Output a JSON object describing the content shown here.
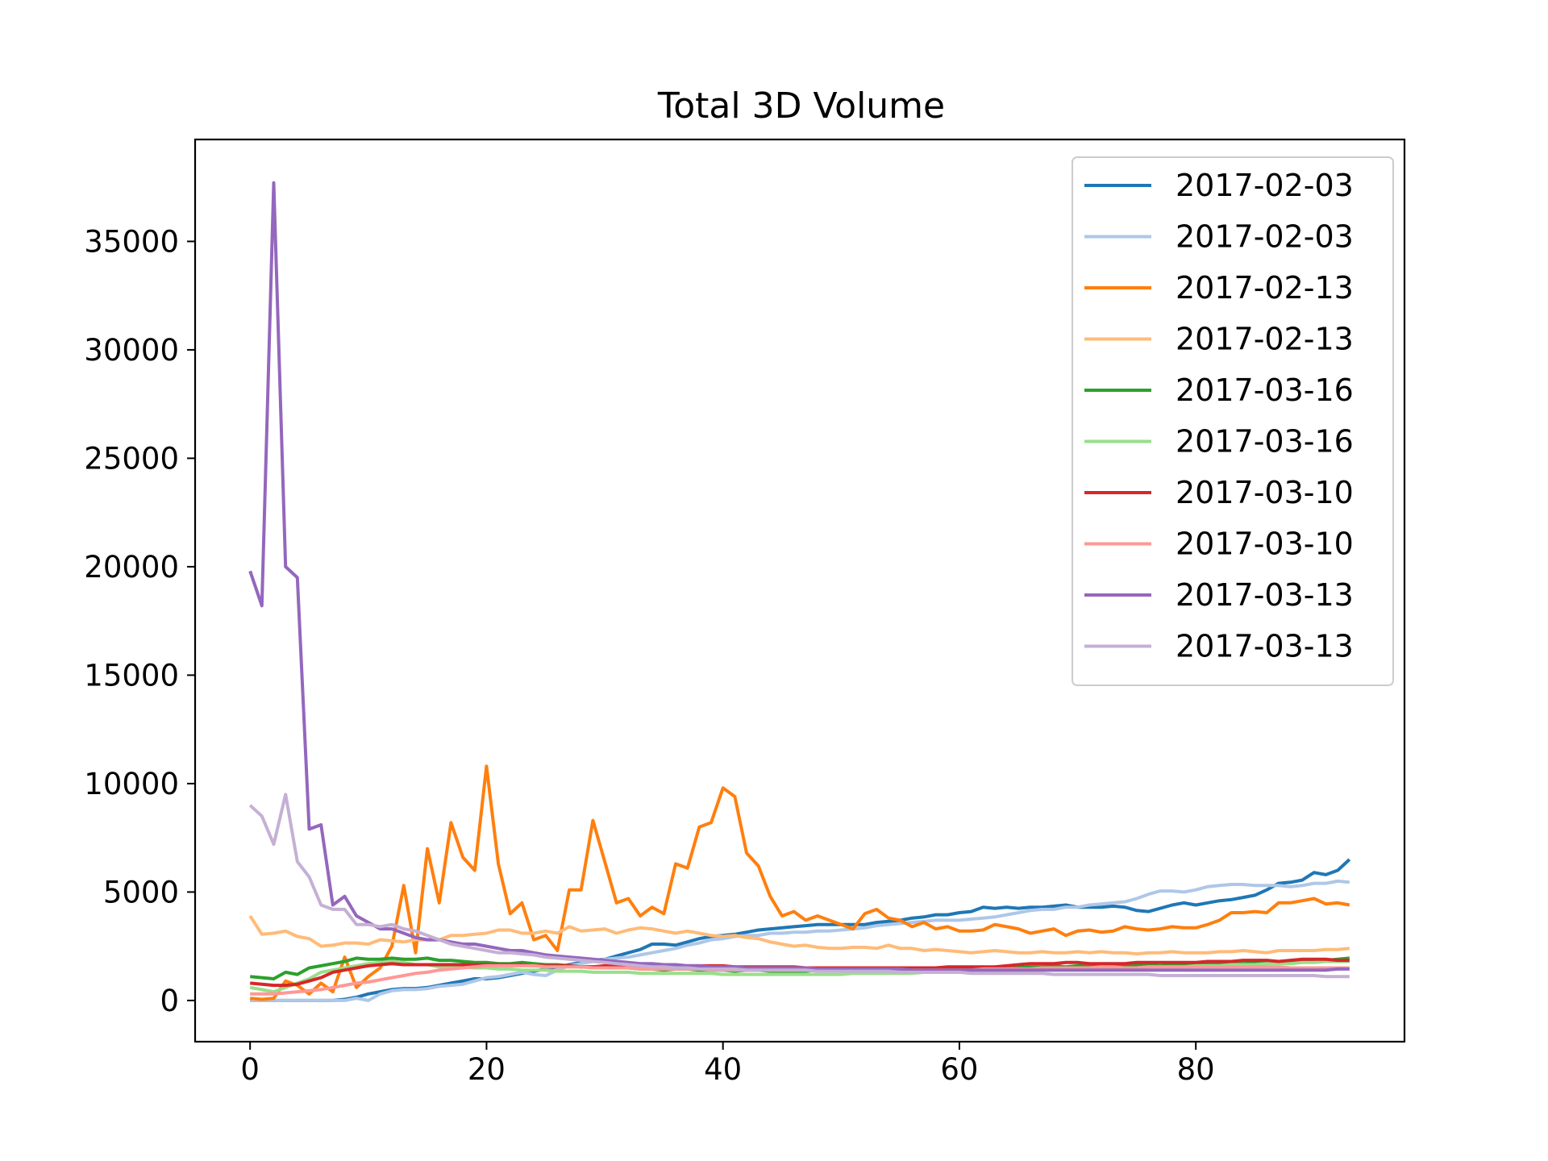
{
  "chart_data": {
    "type": "line",
    "title": "Total 3D Volume",
    "xlabel": "",
    "ylabel": "",
    "xlim": [
      -4.65,
      97.65
    ],
    "ylim": [
      -1900,
      39700
    ],
    "xticks": [
      0,
      20,
      40,
      60,
      80
    ],
    "yticks": [
      0,
      5000,
      10000,
      15000,
      20000,
      25000,
      30000,
      35000
    ],
    "grid": false,
    "legend_position": "top-right",
    "x": [
      0,
      1,
      2,
      3,
      4,
      5,
      6,
      7,
      8,
      9,
      10,
      11,
      12,
      13,
      14,
      15,
      16,
      17,
      18,
      19,
      20,
      21,
      22,
      23,
      24,
      25,
      26,
      27,
      28,
      29,
      30,
      31,
      32,
      33,
      34,
      35,
      36,
      37,
      38,
      39,
      40,
      41,
      42,
      43,
      44,
      45,
      46,
      47,
      48,
      49,
      50,
      51,
      52,
      53,
      54,
      55,
      56,
      57,
      58,
      59,
      60,
      61,
      62,
      63,
      64,
      65,
      66,
      67,
      68,
      69,
      70,
      71,
      72,
      73,
      74,
      75,
      76,
      77,
      78,
      79,
      80,
      81,
      82,
      83,
      84,
      85,
      86,
      87,
      88,
      89,
      90,
      91,
      92,
      93
    ],
    "series": [
      {
        "name": "2017-02-03",
        "color": "#1f77b4",
        "values": [
          0,
          0,
          0,
          0,
          0,
          0,
          0,
          0,
          50,
          150,
          300,
          400,
          500,
          550,
          550,
          600,
          700,
          800,
          900,
          1000,
          1000,
          1050,
          1150,
          1250,
          1350,
          1450,
          1550,
          1650,
          1750,
          1850,
          1900,
          2050,
          2200,
          2350,
          2600,
          2600,
          2550,
          2700,
          2850,
          2950,
          3000,
          3050,
          3150,
          3250,
          3300,
          3350,
          3400,
          3450,
          3500,
          3500,
          3500,
          3500,
          3500,
          3600,
          3650,
          3700,
          3800,
          3850,
          3950,
          3950,
          4050,
          4100,
          4300,
          4250,
          4300,
          4250,
          4300,
          4300,
          4350,
          4400,
          4300,
          4300,
          4300,
          4350,
          4300,
          4150,
          4100,
          4250,
          4400,
          4500,
          4400,
          4500,
          4600,
          4650,
          4750,
          4850,
          5100,
          5400,
          5450,
          5550,
          5900,
          5800,
          6000,
          6500
        ]
      },
      {
        "name": "2017-02-03",
        "color": "#aec7e8",
        "values": [
          0,
          0,
          0,
          0,
          0,
          0,
          0,
          0,
          0,
          100,
          0,
          300,
          450,
          500,
          500,
          550,
          650,
          700,
          750,
          900,
          1050,
          1100,
          1200,
          1300,
          1200,
          1150,
          1400,
          1600,
          1700,
          1800,
          1900,
          1950,
          2000,
          2100,
          2200,
          2300,
          2400,
          2550,
          2650,
          2800,
          2850,
          2950,
          3000,
          3000,
          3100,
          3100,
          3150,
          3150,
          3200,
          3200,
          3250,
          3300,
          3350,
          3450,
          3500,
          3550,
          3600,
          3650,
          3700,
          3700,
          3700,
          3750,
          3800,
          3850,
          3950,
          4050,
          4150,
          4200,
          4200,
          4300,
          4300,
          4400,
          4450,
          4500,
          4550,
          4700,
          4900,
          5050,
          5050,
          5000,
          5100,
          5250,
          5300,
          5350,
          5350,
          5300,
          5300,
          5300,
          5250,
          5300,
          5400,
          5400,
          5500,
          5450
        ]
      },
      {
        "name": "2017-02-13",
        "color": "#ff7f0e",
        "values": [
          100,
          50,
          100,
          900,
          700,
          300,
          800,
          400,
          2000,
          600,
          1100,
          1500,
          2500,
          5300,
          2200,
          7000,
          4500,
          8200,
          6600,
          6000,
          10800,
          6300,
          4000,
          4500,
          2800,
          3000,
          2300,
          5100,
          5100,
          8300,
          6400,
          4500,
          4700,
          3900,
          4300,
          4000,
          6300,
          6100,
          8000,
          8200,
          9800,
          9400,
          6800,
          6200,
          4800,
          3900,
          4100,
          3700,
          3900,
          3700,
          3500,
          3300,
          4000,
          4200,
          3800,
          3700,
          3400,
          3600,
          3300,
          3400,
          3200,
          3200,
          3250,
          3500,
          3400,
          3300,
          3100,
          3200,
          3300,
          3000,
          3200,
          3250,
          3150,
          3200,
          3400,
          3300,
          3250,
          3300,
          3400,
          3350,
          3350,
          3500,
          3700,
          4050,
          4050,
          4100,
          4050,
          4500,
          4500,
          4600,
          4700,
          4450,
          4500,
          4400
        ]
      },
      {
        "name": "2017-02-13",
        "color": "#ffbb78",
        "values": [
          3900,
          3050,
          3100,
          3200,
          2950,
          2850,
          2500,
          2550,
          2650,
          2650,
          2600,
          2800,
          2750,
          2700,
          2800,
          2800,
          2800,
          3000,
          3000,
          3050,
          3100,
          3250,
          3250,
          3100,
          3100,
          3200,
          3100,
          3400,
          3200,
          3250,
          3300,
          3100,
          3250,
          3350,
          3300,
          3200,
          3100,
          3200,
          3100,
          3000,
          2950,
          3000,
          2900,
          2850,
          2700,
          2600,
          2500,
          2550,
          2450,
          2400,
          2400,
          2450,
          2450,
          2400,
          2550,
          2400,
          2400,
          2300,
          2350,
          2300,
          2250,
          2200,
          2250,
          2300,
          2250,
          2200,
          2200,
          2250,
          2200,
          2200,
          2250,
          2200,
          2250,
          2200,
          2200,
          2150,
          2200,
          2200,
          2250,
          2200,
          2200,
          2200,
          2250,
          2250,
          2300,
          2250,
          2200,
          2300,
          2300,
          2300,
          2300,
          2350,
          2350,
          2400
        ]
      },
      {
        "name": "2017-03-16",
        "color": "#2ca02c",
        "values": [
          1100,
          1050,
          1000,
          1300,
          1200,
          1500,
          1600,
          1700,
          1800,
          1950,
          1900,
          1900,
          1950,
          1900,
          1900,
          1950,
          1850,
          1850,
          1800,
          1750,
          1750,
          1700,
          1700,
          1750,
          1700,
          1650,
          1650,
          1600,
          1550,
          1550,
          1500,
          1500,
          1500,
          1450,
          1450,
          1400,
          1450,
          1450,
          1400,
          1400,
          1400,
          1350,
          1400,
          1400,
          1350,
          1350,
          1350,
          1350,
          1400,
          1400,
          1350,
          1400,
          1400,
          1400,
          1400,
          1450,
          1400,
          1450,
          1450,
          1400,
          1450,
          1450,
          1450,
          1500,
          1450,
          1500,
          1550,
          1550,
          1600,
          1550,
          1600,
          1600,
          1600,
          1650,
          1600,
          1650,
          1650,
          1600,
          1650,
          1650,
          1650,
          1700,
          1700,
          1750,
          1700,
          1750,
          1750,
          1800,
          1800,
          1800,
          1850,
          1850,
          1900,
          1950
        ]
      },
      {
        "name": "2017-03-16",
        "color": "#98df8a",
        "values": [
          600,
          500,
          400,
          600,
          800,
          1000,
          1300,
          1400,
          1500,
          1600,
          1700,
          1750,
          1800,
          1750,
          1650,
          1650,
          1550,
          1500,
          1550,
          1500,
          1500,
          1450,
          1450,
          1400,
          1400,
          1400,
          1350,
          1350,
          1350,
          1300,
          1300,
          1300,
          1300,
          1250,
          1250,
          1250,
          1250,
          1250,
          1250,
          1250,
          1200,
          1200,
          1200,
          1200,
          1200,
          1200,
          1200,
          1200,
          1200,
          1200,
          1200,
          1250,
          1250,
          1250,
          1250,
          1250,
          1250,
          1300,
          1300,
          1300,
          1300,
          1300,
          1350,
          1350,
          1350,
          1350,
          1400,
          1400,
          1450,
          1450,
          1450,
          1450,
          1500,
          1500,
          1500,
          1500,
          1550,
          1550,
          1550,
          1550,
          1600,
          1600,
          1600,
          1650,
          1650,
          1650,
          1700,
          1700,
          1700,
          1750,
          1750,
          1800,
          1800,
          1800
        ]
      },
      {
        "name": "2017-03-10",
        "color": "#d62728",
        "values": [
          800,
          750,
          700,
          700,
          750,
          900,
          1050,
          1300,
          1400,
          1500,
          1600,
          1650,
          1700,
          1650,
          1650,
          1650,
          1650,
          1650,
          1650,
          1650,
          1650,
          1650,
          1650,
          1650,
          1600,
          1600,
          1600,
          1600,
          1550,
          1550,
          1600,
          1600,
          1600,
          1600,
          1550,
          1600,
          1550,
          1600,
          1600,
          1600,
          1600,
          1550,
          1550,
          1550,
          1550,
          1550,
          1550,
          1500,
          1500,
          1500,
          1500,
          1500,
          1500,
          1500,
          1500,
          1500,
          1500,
          1500,
          1500,
          1550,
          1550,
          1550,
          1550,
          1550,
          1600,
          1650,
          1700,
          1700,
          1700,
          1750,
          1750,
          1700,
          1700,
          1700,
          1700,
          1750,
          1750,
          1750,
          1750,
          1750,
          1750,
          1800,
          1800,
          1800,
          1850,
          1850,
          1850,
          1800,
          1850,
          1900,
          1900,
          1900,
          1850,
          1850
        ]
      },
      {
        "name": "2017-03-10",
        "color": "#ff9896",
        "values": [
          300,
          300,
          300,
          350,
          400,
          450,
          500,
          600,
          700,
          800,
          850,
          950,
          1050,
          1150,
          1250,
          1300,
          1400,
          1450,
          1500,
          1550,
          1600,
          1600,
          1600,
          1600,
          1600,
          1550,
          1550,
          1550,
          1550,
          1500,
          1500,
          1500,
          1500,
          1450,
          1450,
          1450,
          1450,
          1450,
          1450,
          1400,
          1400,
          1400,
          1400,
          1400,
          1400,
          1400,
          1400,
          1400,
          1400,
          1400,
          1400,
          1400,
          1400,
          1400,
          1400,
          1400,
          1400,
          1400,
          1400,
          1400,
          1400,
          1400,
          1450,
          1450,
          1450,
          1450,
          1450,
          1500,
          1500,
          1500,
          1500,
          1500,
          1550,
          1550,
          1500,
          1500,
          1550,
          1550,
          1550,
          1550,
          1550,
          1550,
          1550,
          1550,
          1550,
          1550,
          1550,
          1550,
          1500,
          1500,
          1500,
          1500,
          1500,
          1500
        ]
      },
      {
        "name": "2017-03-13",
        "color": "#9467bd",
        "values": [
          19800,
          18200,
          37700,
          20000,
          19500,
          7900,
          8100,
          4400,
          4800,
          3900,
          3600,
          3300,
          3300,
          3100,
          2900,
          2800,
          2800,
          2700,
          2600,
          2600,
          2500,
          2400,
          2300,
          2300,
          2200,
          2100,
          2050,
          2000,
          1950,
          1900,
          1850,
          1800,
          1750,
          1700,
          1700,
          1650,
          1650,
          1600,
          1600,
          1550,
          1550,
          1550,
          1500,
          1500,
          1500,
          1500,
          1500,
          1500,
          1450,
          1450,
          1450,
          1450,
          1450,
          1450,
          1450,
          1450,
          1400,
          1400,
          1400,
          1400,
          1400,
          1400,
          1400,
          1400,
          1400,
          1400,
          1400,
          1400,
          1400,
          1400,
          1400,
          1400,
          1400,
          1400,
          1400,
          1400,
          1400,
          1400,
          1400,
          1400,
          1400,
          1400,
          1400,
          1400,
          1400,
          1400,
          1400,
          1400,
          1400,
          1400,
          1400,
          1400,
          1450,
          1450
        ]
      },
      {
        "name": "2017-03-13",
        "color": "#c5b0d5",
        "values": [
          9000,
          8500,
          7200,
          9500,
          6400,
          5700,
          4400,
          4200,
          4200,
          3500,
          3500,
          3400,
          3500,
          3300,
          3200,
          3000,
          2800,
          2600,
          2500,
          2400,
          2300,
          2200,
          2200,
          2150,
          2100,
          2000,
          1950,
          1900,
          1850,
          1800,
          1750,
          1700,
          1650,
          1600,
          1550,
          1550,
          1500,
          1500,
          1450,
          1450,
          1450,
          1450,
          1400,
          1400,
          1400,
          1400,
          1400,
          1400,
          1350,
          1350,
          1350,
          1350,
          1350,
          1350,
          1350,
          1300,
          1300,
          1300,
          1300,
          1300,
          1300,
          1250,
          1250,
          1250,
          1250,
          1250,
          1250,
          1250,
          1200,
          1200,
          1200,
          1200,
          1200,
          1200,
          1200,
          1200,
          1200,
          1150,
          1150,
          1150,
          1150,
          1150,
          1150,
          1150,
          1150,
          1150,
          1150,
          1150,
          1150,
          1150,
          1150,
          1100,
          1100,
          1100
        ]
      }
    ]
  }
}
